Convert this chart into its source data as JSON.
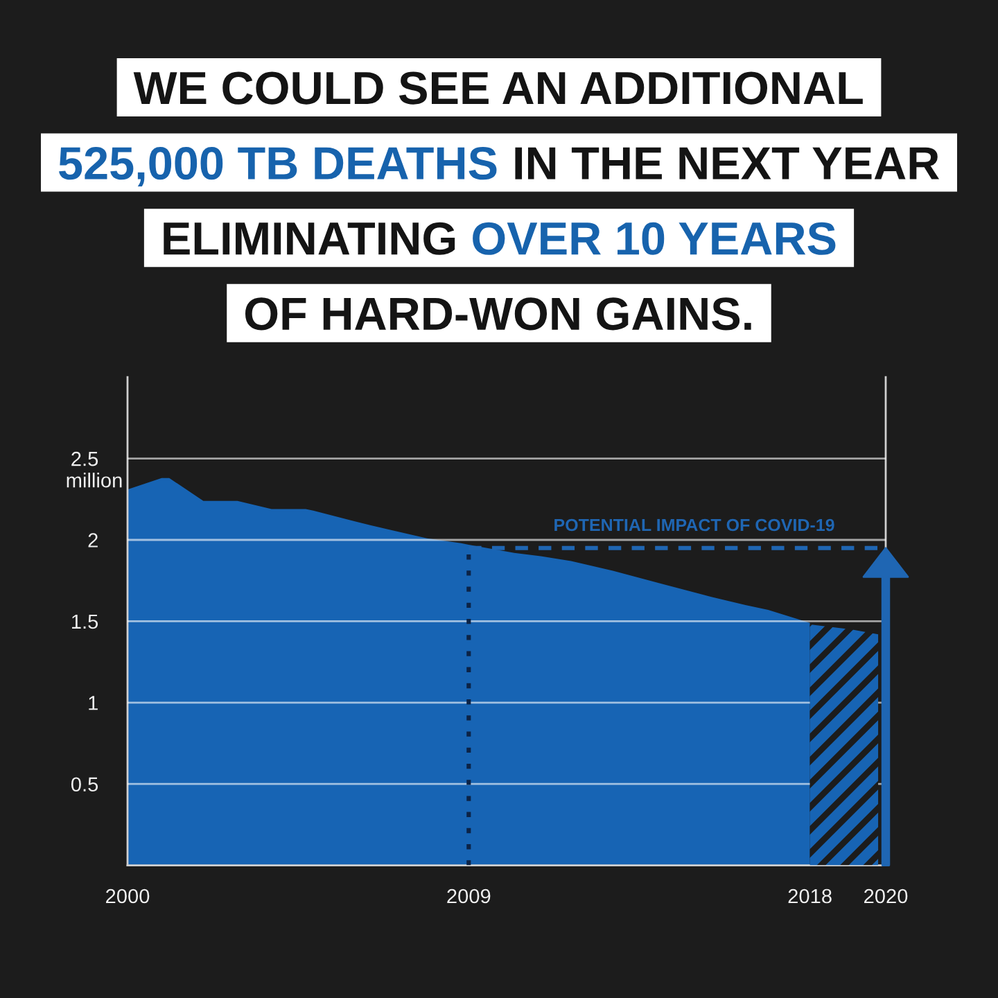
{
  "chart_data": {
    "type": "area",
    "title": "WE COULD SEE AN ADDITIONAL\n525,000 TB DEATHS IN THE NEXT YEAR\nELIMINATING OVER 10 YEARS\nOF HARD-WON GAINS.",
    "ylabel": "million",
    "series": [
      {
        "color": "#1764b4",
        "x": [
          2000,
          2000.9,
          2001.1,
          2002,
          2002.9,
          2003.8,
          2004.7,
          2004.9,
          2006.4,
          2007.9,
          2008.8,
          2009,
          2010.2,
          2010.9,
          2011.7,
          2012.8,
          2014.1,
          2015.4,
          2016.3,
          2016.9,
          2018
        ],
        "values": [
          2.31,
          2.38,
          2.38,
          2.24,
          2.24,
          2.19,
          2.19,
          2.18,
          2.09,
          2.01,
          1.98,
          1.97,
          1.92,
          1.9,
          1.87,
          1.81,
          1.73,
          1.65,
          1.6,
          1.57,
          1.49
        ]
      },
      {
        "color": "#1764b4",
        "x": [
          2018,
          2019.1,
          2019.8
        ],
        "values": [
          1.48,
          1.45,
          1.42
        ]
      }
    ],
    "xlim": [
      2000,
      2020
    ],
    "xticks": [
      2000,
      2009,
      2018,
      2020
    ],
    "ylim": [
      0,
      3
    ],
    "yticks": [
      0.5,
      1,
      1.5,
      2,
      2.5
    ],
    "grid": "y",
    "ref_lines": [
      {
        "axis": "y",
        "value": 1.95,
        "label": "POTENTIAL IMPACT OF COVID-19",
        "color": "#1f66b3",
        "line_style": "dashed"
      },
      {
        "axis": "x",
        "value": 2009,
        "color": "#0c2346",
        "line_style": "dotted"
      }
    ]
  }
}
